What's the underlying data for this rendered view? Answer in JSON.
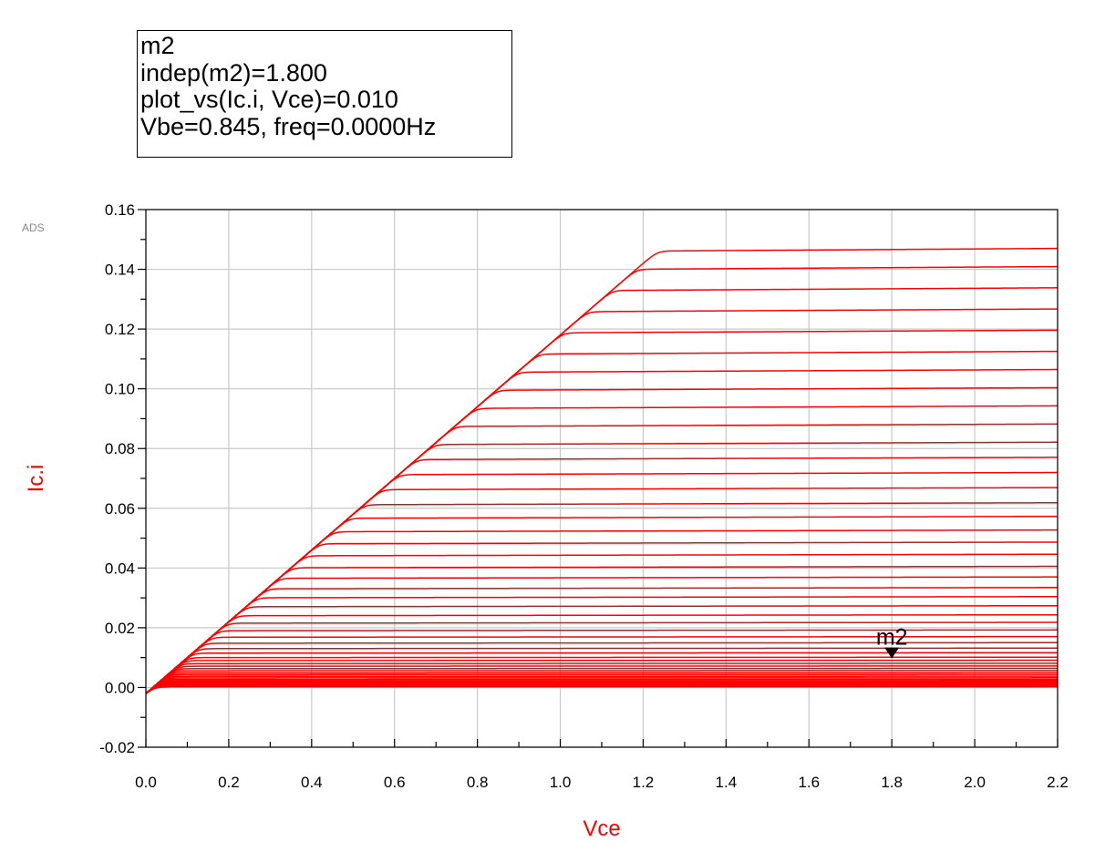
{
  "marker_readout": {
    "lines": [
      "m2",
      "indep(m2)=1.800",
      "plot_vs(Ic.i, Vce)=0.010",
      "Vbe=0.845, freq=0.0000Hz"
    ]
  },
  "watermark": "ADS",
  "chart_data": {
    "type": "line",
    "title": "",
    "xlabel": "Vce",
    "ylabel": "Ic.i",
    "xlim": [
      0.0,
      2.2
    ],
    "ylim": [
      -0.02,
      0.16
    ],
    "x_ticks": [
      "0.0",
      "0.2",
      "0.4",
      "0.6",
      "0.8",
      "1.0",
      "1.2",
      "1.4",
      "1.6",
      "1.8",
      "2.0",
      "2.2"
    ],
    "y_ticks": [
      "-0.02",
      "0.00",
      "0.02",
      "0.04",
      "0.06",
      "0.08",
      "0.10",
      "0.12",
      "0.14",
      "0.16"
    ],
    "grid": true,
    "series_color": "#ff0000",
    "family": {
      "swept_parameter": "Vbe",
      "saturation_slope": 0.12,
      "knee_sharpness": 10,
      "vce_start": 0.0,
      "ic_at_zero": -0.002,
      "levels": [
        0.0002,
        0.0004,
        0.0006,
        0.0008,
        0.001,
        0.0013,
        0.0016,
        0.0019,
        0.0023,
        0.0027,
        0.0032,
        0.0037,
        0.0043,
        0.0049,
        0.0056,
        0.0063,
        0.0071,
        0.008,
        0.009,
        0.01,
        0.0115,
        0.013,
        0.0148,
        0.0168,
        0.019,
        0.0215,
        0.024,
        0.027,
        0.03,
        0.033,
        0.0365,
        0.04,
        0.044,
        0.048,
        0.052,
        0.0565,
        0.061,
        0.066,
        0.071,
        0.076,
        0.081,
        0.087,
        0.093,
        0.099,
        0.105,
        0.111,
        0.118,
        0.125,
        0.132,
        0.139,
        0.145
      ],
      "level_drift": 0.002
    },
    "marker": {
      "name": "m2",
      "x": 1.8,
      "y": 0.01
    }
  }
}
